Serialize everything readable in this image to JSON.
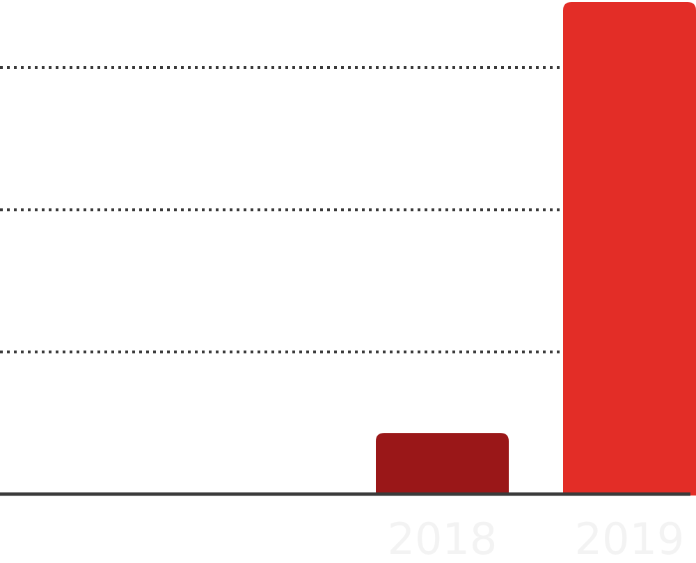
{
  "chart_data": {
    "type": "bar",
    "categories": [
      "2018",
      "2019"
    ],
    "values": [
      0.43,
      3.46
    ],
    "title": "",
    "xlabel": "",
    "ylabel": "",
    "ylim": [
      0,
      3.46
    ],
    "gridlines": [
      1,
      2,
      3
    ],
    "grid": true,
    "grid_style": "dotted",
    "legend": "none",
    "colors": [
      "#9a1718",
      "#e32d27"
    ],
    "baseline_color": "#3a3a3a",
    "label_color": "#f3f3f3"
  }
}
